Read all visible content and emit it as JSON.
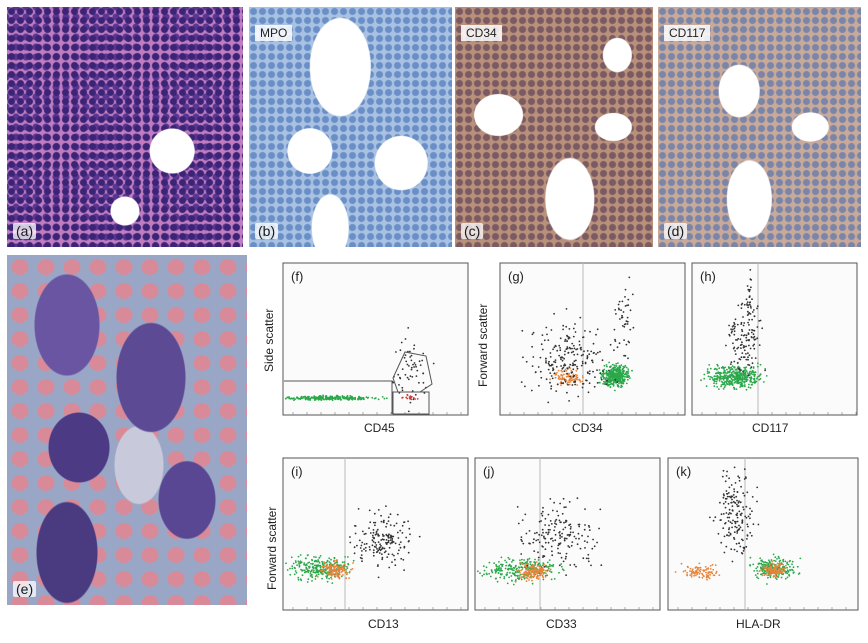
{
  "panels": {
    "a": {
      "tag": "(a)"
    },
    "b": {
      "tag": "(b)",
      "stain": "MPO"
    },
    "c": {
      "tag": "(c)",
      "stain": "CD34"
    },
    "d": {
      "tag": "(d)",
      "stain": "CD117"
    },
    "e": {
      "tag": "(e)"
    }
  },
  "chart_data": [
    {
      "type": "scatter",
      "panel": "(f)",
      "xlabel": "CD45",
      "ylabel": "Side scatter",
      "gates": [
        "lymphocyte-region",
        "blast-region"
      ]
    },
    {
      "type": "scatter",
      "panel": "(g)",
      "xlabel": "CD34",
      "ylabel": "Forward scatter"
    },
    {
      "type": "scatter",
      "panel": "(h)",
      "xlabel": "CD117",
      "ylabel": ""
    },
    {
      "type": "scatter",
      "panel": "(i)",
      "xlabel": "CD13",
      "ylabel": "Forward scatter"
    },
    {
      "type": "scatter",
      "panel": "(j)",
      "xlabel": "CD33",
      "ylabel": ""
    },
    {
      "type": "scatter",
      "panel": "(k)",
      "xlabel": "HLA-DR",
      "ylabel": ""
    }
  ],
  "colors": {
    "green": "#2aa84a",
    "orange": "#e8843a",
    "black": "#333333",
    "red": "#d23b3b"
  }
}
